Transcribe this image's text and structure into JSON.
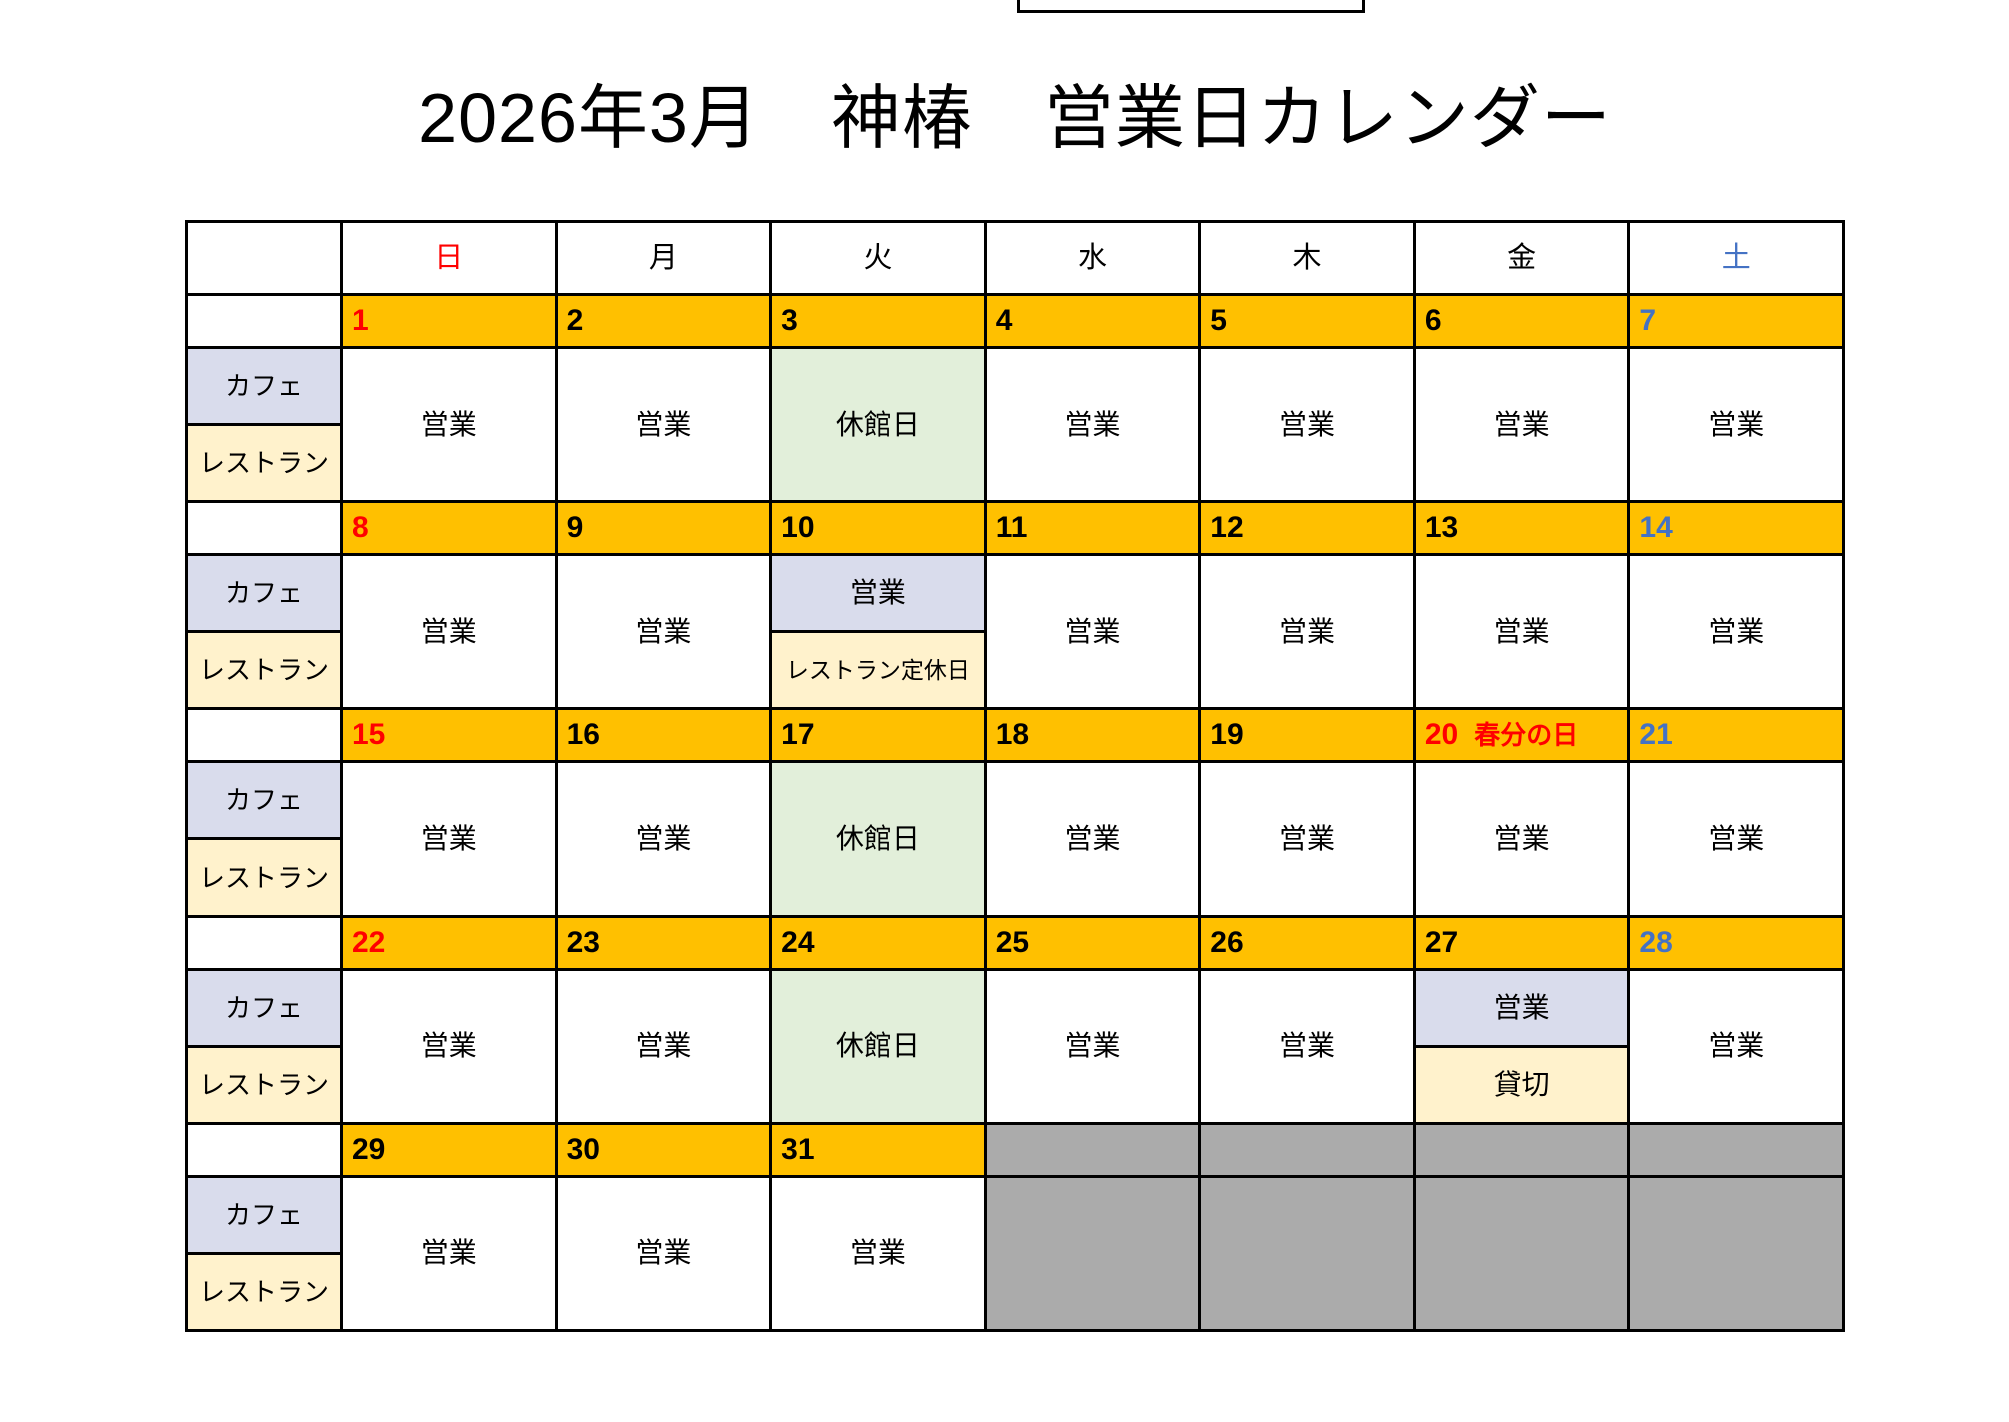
{
  "title": "2026年3月　神椿　営業日カレンダー",
  "colors": {
    "date_bg": "#FFC000",
    "sunday_red": "#FF0000",
    "saturday_blue": "#4472C4",
    "cafe_bg": "#D9DCEC",
    "restaurant_bg": "#FFF2CC",
    "closed_bg": "#E2EFDA",
    "inactive_bg": "#ABABAB",
    "border": "#000000"
  },
  "header": {
    "corner": "",
    "days": [
      {
        "label": "日",
        "color": "red"
      },
      {
        "label": "月",
        "color": "black"
      },
      {
        "label": "火",
        "color": "black"
      },
      {
        "label": "水",
        "color": "black"
      },
      {
        "label": "木",
        "color": "black"
      },
      {
        "label": "金",
        "color": "black"
      },
      {
        "label": "土",
        "color": "blue"
      }
    ]
  },
  "row_labels": {
    "cafe": "カフェ",
    "restaurant": "レストラン"
  },
  "weeks": [
    {
      "days": [
        {
          "date": "1",
          "color": "red",
          "status": "営業"
        },
        {
          "date": "2",
          "color": "black",
          "status": "営業"
        },
        {
          "date": "3",
          "color": "black",
          "status": "休館日"
        },
        {
          "date": "4",
          "color": "black",
          "status": "営業"
        },
        {
          "date": "5",
          "color": "black",
          "status": "営業"
        },
        {
          "date": "6",
          "color": "black",
          "status": "営業"
        },
        {
          "date": "7",
          "color": "blue",
          "status": "営業"
        }
      ]
    },
    {
      "days": [
        {
          "date": "8",
          "color": "red",
          "status": "営業"
        },
        {
          "date": "9",
          "color": "black",
          "status": "営業"
        },
        {
          "date": "10",
          "color": "black",
          "cafe": "営業",
          "restaurant": "レストラン定休日"
        },
        {
          "date": "11",
          "color": "black",
          "status": "営業"
        },
        {
          "date": "12",
          "color": "black",
          "status": "営業"
        },
        {
          "date": "13",
          "color": "black",
          "status": "営業"
        },
        {
          "date": "14",
          "color": "blue",
          "status": "営業"
        }
      ]
    },
    {
      "days": [
        {
          "date": "15",
          "color": "red",
          "status": "営業"
        },
        {
          "date": "16",
          "color": "black",
          "status": "営業"
        },
        {
          "date": "17",
          "color": "black",
          "status": "休館日"
        },
        {
          "date": "18",
          "color": "black",
          "status": "営業"
        },
        {
          "date": "19",
          "color": "black",
          "status": "営業"
        },
        {
          "date": "20",
          "color": "red",
          "holiday": "春分の日",
          "status": "営業"
        },
        {
          "date": "21",
          "color": "blue",
          "status": "営業"
        }
      ]
    },
    {
      "days": [
        {
          "date": "22",
          "color": "red",
          "status": "営業"
        },
        {
          "date": "23",
          "color": "black",
          "status": "営業"
        },
        {
          "date": "24",
          "color": "black",
          "status": "休館日"
        },
        {
          "date": "25",
          "color": "black",
          "status": "営業"
        },
        {
          "date": "26",
          "color": "black",
          "status": "営業"
        },
        {
          "date": "27",
          "color": "black",
          "cafe": "営業",
          "restaurant": "貸切"
        },
        {
          "date": "28",
          "color": "blue",
          "status": "営業"
        }
      ]
    },
    {
      "days": [
        {
          "date": "29",
          "color": "black",
          "status": "営業"
        },
        {
          "date": "30",
          "color": "black",
          "status": "営業"
        },
        {
          "date": "31",
          "color": "black",
          "status": "営業"
        }
      ],
      "inactive_columns": 4
    }
  ]
}
